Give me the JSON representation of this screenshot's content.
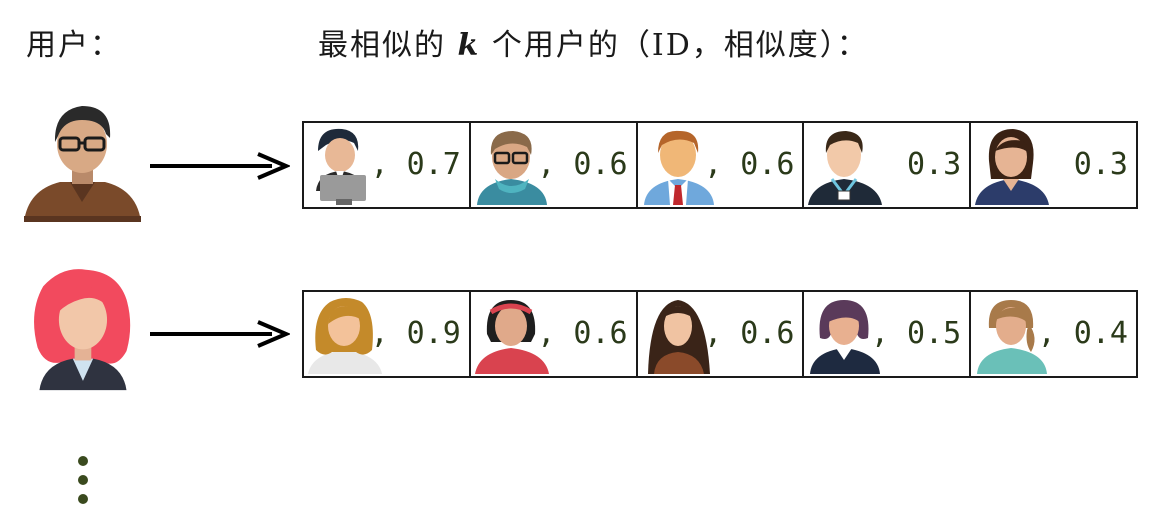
{
  "header": {
    "users_label": "用户：",
    "similar_prefix": "最相似的",
    "similar_k": "k",
    "similar_suffix": "个用户的（ID，相似度）："
  },
  "rows": [
    {
      "user_icon": "male-glasses-avatar-icon",
      "neighbors": [
        {
          "icon": "businessman-laptop-icon",
          "score": ", 0.7"
        },
        {
          "icon": "man-glasses-scarf-icon",
          "score": ", 0.6"
        },
        {
          "icon": "man-red-tie-icon",
          "score": ", 0.6"
        },
        {
          "icon": "man-lanyard-icon",
          "score": "0.3"
        },
        {
          "icon": "woman-navy-icon",
          "score": "0.3"
        }
      ]
    },
    {
      "user_icon": "female-red-hair-avatar-icon",
      "neighbors": [
        {
          "icon": "woman-blonde-icon",
          "score": ", 0.9"
        },
        {
          "icon": "woman-headband-icon",
          "score": ", 0.6"
        },
        {
          "icon": "woman-long-hair-icon",
          "score": ", 0.6"
        },
        {
          "icon": "woman-bob-icon",
          "score": ", 0.5"
        },
        {
          "icon": "woman-ponytail-icon",
          "score": ", 0.4"
        }
      ]
    }
  ],
  "more_icon": "vertical-ellipsis-icon"
}
